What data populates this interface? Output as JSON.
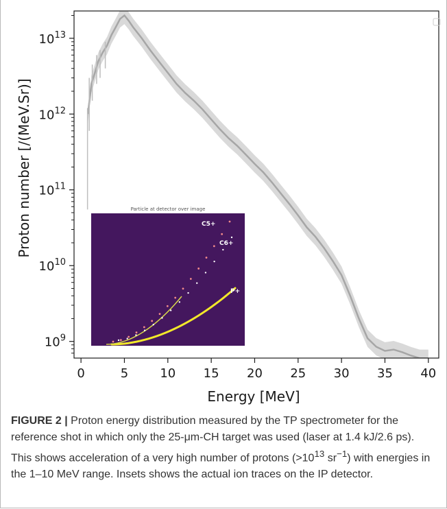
{
  "chart_data": {
    "type": "line",
    "xlabel": "Energy [MeV]",
    "ylabel": "Proton number [/(MeV.Sr)]",
    "xlim": [
      -0.8,
      41.2
    ],
    "ylim": [
      8.78,
      13.36
    ],
    "y_log_scale": true,
    "x_ticks": [
      0,
      5,
      10,
      15,
      20,
      25,
      30,
      35,
      40
    ],
    "x_tick_labels": [
      "0",
      "5",
      "10",
      "15",
      "20",
      "25",
      "30",
      "35",
      "40"
    ],
    "y_tick_exponents": [
      9,
      10,
      11,
      12,
      13
    ],
    "y_tick_base": "10",
    "y_tick_labels": [
      "9",
      "10",
      "11",
      "12",
      "13"
    ],
    "series": [
      {
        "x": [
          0.8,
          1.2,
          1.6,
          2.0,
          2.5,
          3.0,
          3.5,
          4.0,
          4.5,
          5.0,
          5.5,
          6.0,
          7.0,
          8.0,
          9.0,
          10.0,
          11.0,
          12.0,
          13.0,
          14.0,
          15.0,
          16.0,
          17.0,
          18.0,
          19.0,
          20.0,
          21.0,
          22.0,
          23.0,
          24.0,
          25.0,
          26.0,
          27.0,
          28.0,
          29.0,
          30.0,
          31.0,
          32.0,
          33.0,
          34.0,
          35.0,
          36.0,
          37.0,
          38.0,
          39.0,
          40.0
        ],
        "y": [
          1000000000000.0,
          2500000000000.0,
          3500000000000.0,
          5000000000000.0,
          6500000000000.0,
          8000000000000.0,
          11000000000000.0,
          14000000000000.0,
          18000000000000.0,
          20000000000000.0,
          17000000000000.0,
          14000000000000.0,
          10000000000000.0,
          6900000000000.0,
          4900000000000.0,
          3500000000000.0,
          2500000000000.0,
          1900000000000.0,
          1500000000000.0,
          1150000000000.0,
          850000000000.0,
          630000000000.0,
          480000000000.0,
          380000000000.0,
          290000000000.0,
          220000000000.0,
          170000000000.0,
          125000000000.0,
          90000000000.0,
          65000000000.0,
          46000000000.0,
          32000000000.0,
          24000000000.0,
          17000000000.0,
          11500000000.0,
          7500000000.0,
          4000000000.0,
          2000000000.0,
          1100000000.0,
          850000000.0,
          750000000.0,
          780000000.0,
          720000000.0,
          650000000.0,
          600000000.0,
          600000000.0
        ],
        "uncertainty_factor": 1.3
      }
    ],
    "inset": {
      "title": "Particle at detector over image",
      "trace_labels": [
        "C5+",
        "C6+",
        "P+"
      ],
      "colors": {
        "background": "#44175e",
        "proton_trace": "#f2e82a",
        "ion_dots": "#f28a8a",
        "label": "#ffffff"
      }
    },
    "colors": {
      "line": "#a6a6a6",
      "band": "#d9d9d9",
      "axis": "#1a1a1a"
    },
    "grid": false
  },
  "caption": {
    "label": "FIGURE 2 |",
    "text": " Proton energy distribution measured by the TP spectrometer for the reference shot in which only the 25-μm-CH target was used (laser at 1.4 kJ/2.6 ps). This shows acceleration of a very high number of protons (>10",
    "sup1": "13",
    "text2": " sr",
    "sup2": "−1",
    "text3": ") with energies in the 1–10 MeV range. Insets shows the actual ion traces on the IP detector."
  }
}
